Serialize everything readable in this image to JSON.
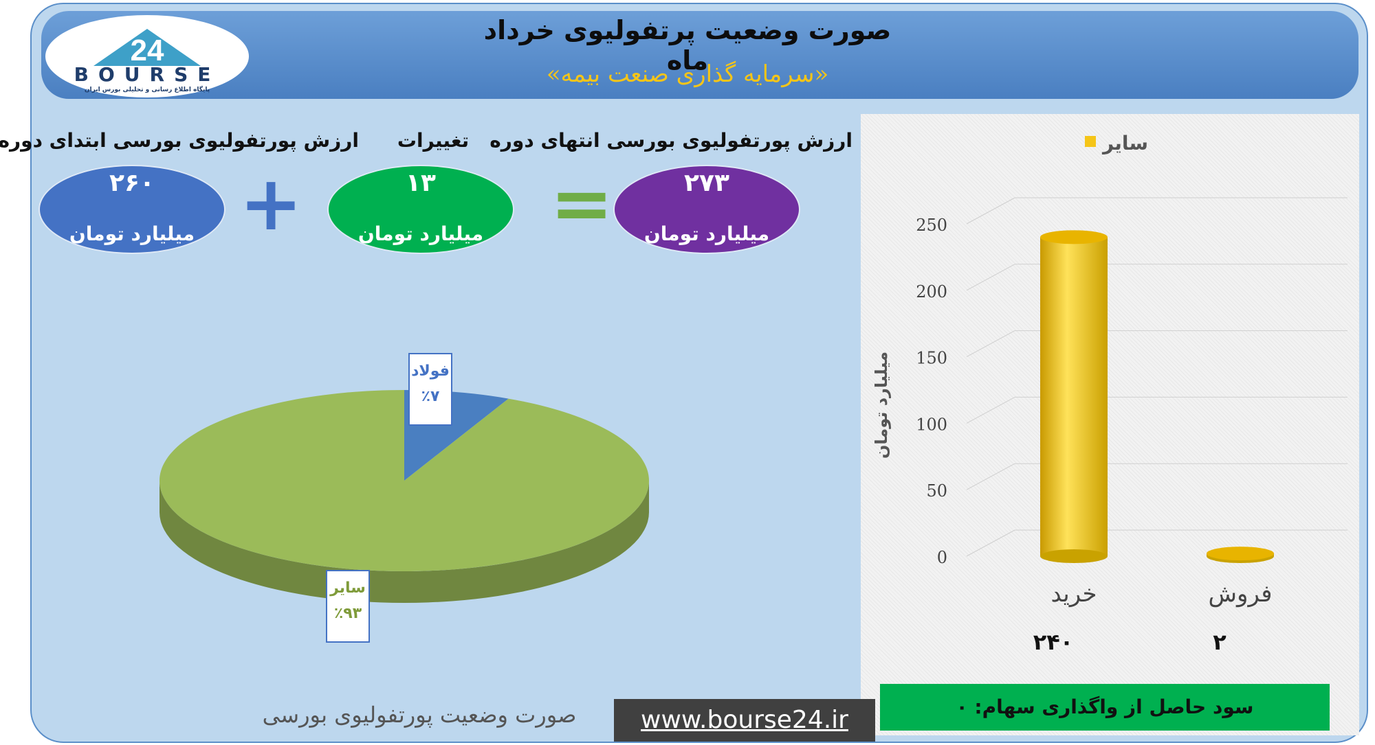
{
  "header": {
    "title": "صورت وضعیت پرتفولیوی خرداد ماه",
    "subtitle": "«سرمایه گذاری صنعت بیمه»",
    "logo_text": "BOURSE",
    "logo_sub": "پایگاه اطلاع رسانی و تحلیلی بورس ایران"
  },
  "summary": {
    "start": {
      "label": "ارزش پورتفولیوی بورسی ابتدای دوره",
      "value": "۲۶۰",
      "unit": "میلیارد تومان",
      "color": "#4472c4"
    },
    "change": {
      "label": "تغییرات",
      "value": "۱۳",
      "unit": "میلیارد تومان",
      "color": "#00b050"
    },
    "end": {
      "label": "ارزش پورتفولیوی بورسی انتهای دوره",
      "value": "۲۷۳",
      "unit": "میلیارد تومان",
      "color": "#7030a0"
    },
    "plus": "+",
    "equals": "="
  },
  "chart_data": [
    {
      "type": "pie",
      "title": "",
      "slices": [
        {
          "label": "فولاد",
          "value": 7,
          "display": "٪۷",
          "color": "#4a7fc1"
        },
        {
          "label": "سایر",
          "value": 93,
          "display": "٪۹۳",
          "color": "#9bbb59"
        }
      ]
    },
    {
      "type": "bar",
      "categories": [
        "خرید",
        "فروش"
      ],
      "series": [
        {
          "name": "سایر",
          "values": [
            240,
            2
          ],
          "color": "#f5c518"
        }
      ],
      "category_value_labels": [
        "۲۴۰",
        "۲"
      ],
      "ylabel": "میلیارد تومان",
      "ylim": [
        0,
        250
      ],
      "yticks": [
        0,
        50,
        100,
        150,
        200,
        250
      ],
      "legend": "top",
      "grid": true
    }
  ],
  "profit_box": "سود حاصل از واگذاری سهام: ۰",
  "website": "www.bourse24.ir",
  "caption": "صورت وضعیت پورتفولیوی بورسی"
}
